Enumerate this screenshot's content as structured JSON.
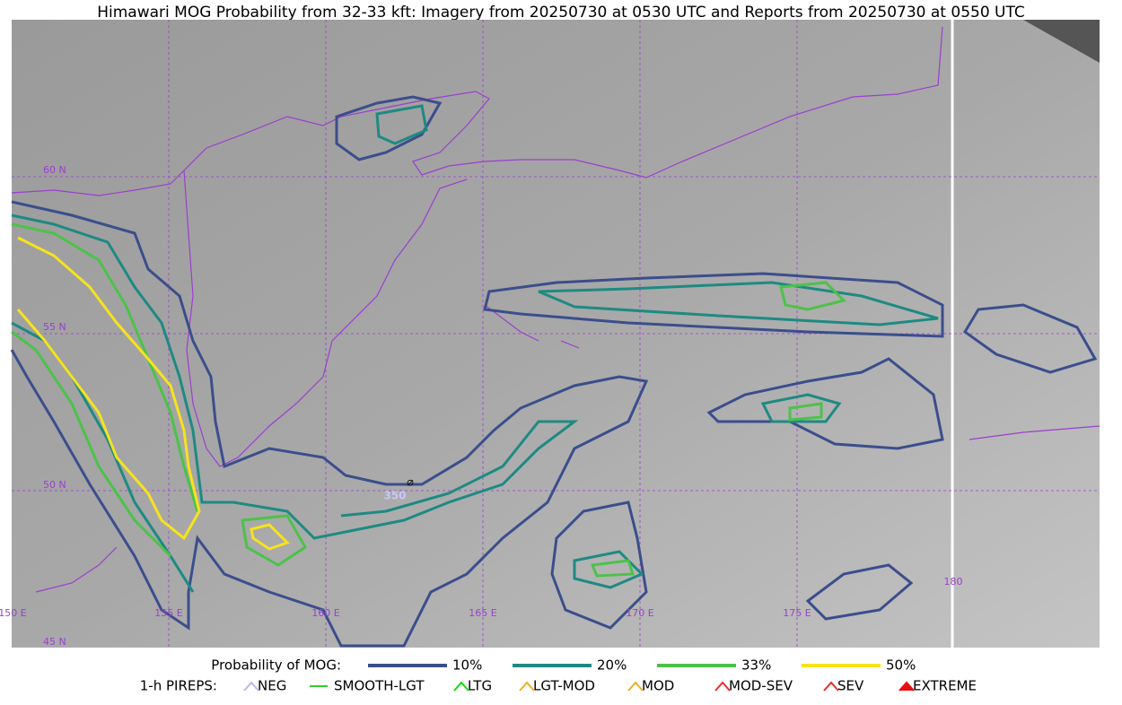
{
  "title": "Himawari MOG Probability from 32-33 kft: Imagery from 20250730 at 0530 UTC and Reports from 20250730 at 0550 UTC",
  "map": {
    "lat_labels": [
      "60 N",
      "55 N",
      "50 N",
      "45 N"
    ],
    "lon_labels": [
      "150 E",
      "155 E",
      "160 E",
      "165 E",
      "170 E",
      "175 E",
      "180"
    ],
    "report_label": "350"
  },
  "legend": {
    "probability": {
      "title": "Probability of MOG:",
      "items": [
        {
          "label": "10%",
          "color": "#3b4e8c"
        },
        {
          "label": "20%",
          "color": "#1e8a82"
        },
        {
          "label": "33%",
          "color": "#4cc24a"
        },
        {
          "label": "50%",
          "color": "#f7e31c"
        }
      ]
    },
    "pireps": {
      "title": "1-h PIREPS:",
      "items": [
        {
          "label": "NEG",
          "color": "#b8b8f0"
        },
        {
          "label": "SMOOTH-LGT",
          "color": "#33cc33"
        },
        {
          "label": "LTG",
          "color": "#11dd11"
        },
        {
          "label": "LGT-MOD",
          "color": "#f0b020"
        },
        {
          "label": "MOD",
          "color": "#f0b020"
        },
        {
          "label": "MOD-SEV",
          "color": "#e83030"
        },
        {
          "label": "SEV",
          "color": "#e83030"
        },
        {
          "label": "EXTREME",
          "color": "#e81010"
        }
      ]
    }
  }
}
